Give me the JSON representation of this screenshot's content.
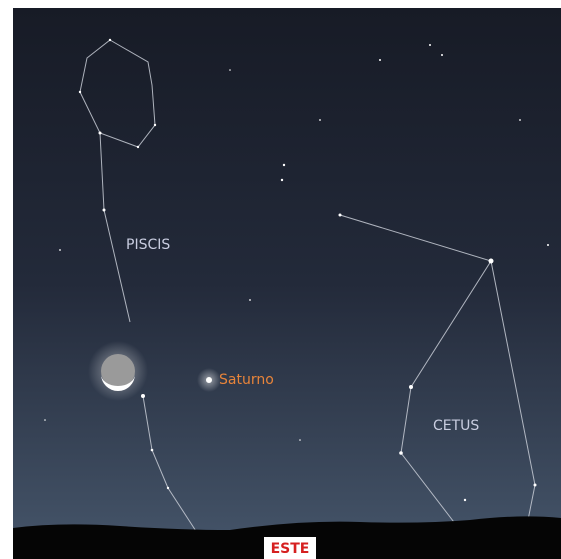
{
  "labels": {
    "piscis": "PISCIS",
    "saturno": "Saturno",
    "cetus": "CETUS",
    "este": "ESTE"
  }
}
